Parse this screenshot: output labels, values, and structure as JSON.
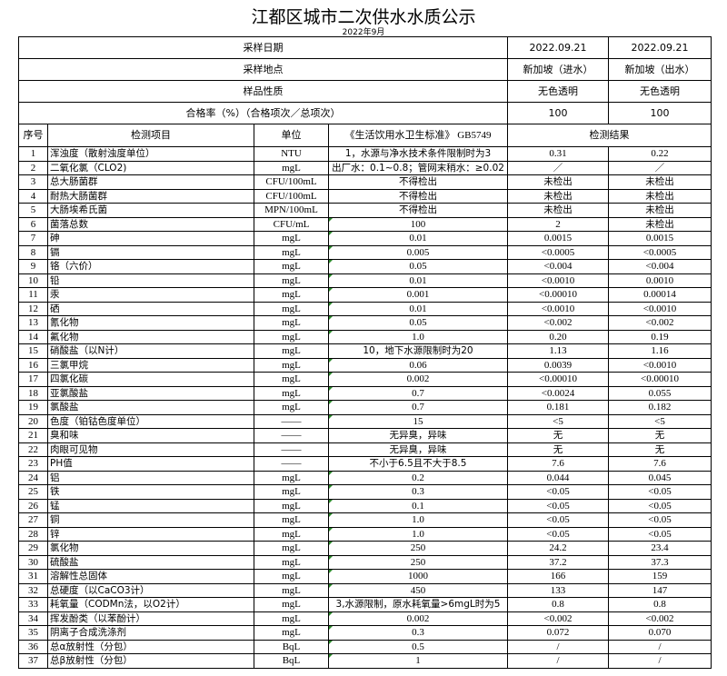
{
  "title": "江都区城市二次供水水质公示",
  "subtitle": "2022年9月",
  "meta": [
    {
      "label": "采样日期",
      "a": "2022.09.21",
      "b": "2022.09.21"
    },
    {
      "label": "采样地点",
      "a": "新加坡（进水）",
      "b": "新加坡（出水）"
    },
    {
      "label": "样品性质",
      "a": "无色透明",
      "b": "无色透明"
    },
    {
      "label": "合格率（%）（合格项次／总项次）",
      "a": "100",
      "b": "100"
    }
  ],
  "header": {
    "no": "序号",
    "item": "检测项目",
    "unit": "单位",
    "standard": "《生活饮用水卫生标准》 GB5749",
    "result": "检测结果"
  },
  "rows": [
    {
      "no": "1",
      "item": "浑浊度（散射浊度单位）",
      "unit": "NTU",
      "std": "1，水源与净水技术条件限制时为3",
      "a": "0.31",
      "b": "0.22"
    },
    {
      "no": "2",
      "item": "二氧化氯（CLO2)",
      "unit": "mgL",
      "std": "出厂水：0.1~0.8；管网末稍水：≥0.02",
      "a": "／",
      "b": "／"
    },
    {
      "no": "3",
      "item": "总大肠菌群",
      "unit": "CFU/100mL",
      "std": "不得检出",
      "a": "未检出",
      "b": "未检出"
    },
    {
      "no": "4",
      "item": "耐热大肠菌群",
      "unit": "CFU/100mL",
      "std": "不得检出",
      "a": "未检出",
      "b": "未检出"
    },
    {
      "no": "5",
      "item": "大肠埃希氏菌",
      "unit": "MPN/100mL",
      "std": "不得检出",
      "a": "未检出",
      "b": "未检出"
    },
    {
      "no": "6",
      "item": "菌落总数",
      "unit": "CFU/mL",
      "std": "100",
      "a": "2",
      "b": "未检出"
    },
    {
      "no": "7",
      "item": "砷",
      "unit": "mgL",
      "std": "0.01",
      "a": "0.0015",
      "b": "0.0015"
    },
    {
      "no": "8",
      "item": "镉",
      "unit": "mgL",
      "std": "0.005",
      "a": "<0.0005",
      "b": "<0.0005"
    },
    {
      "no": "9",
      "item": "铬（六价）",
      "unit": "mgL",
      "std": "0.05",
      "a": "<0.004",
      "b": "<0.004"
    },
    {
      "no": "10",
      "item": "铅",
      "unit": "mgL",
      "std": "0.01",
      "a": "<0.0010",
      "b": "0.0010"
    },
    {
      "no": "11",
      "item": "汞",
      "unit": "mgL",
      "std": "0.001",
      "a": "<0.00010",
      "b": "0.00014"
    },
    {
      "no": "12",
      "item": "硒",
      "unit": "mgL",
      "std": "0.01",
      "a": "<0.0010",
      "b": "<0.0010"
    },
    {
      "no": "13",
      "item": "氰化物",
      "unit": "mgL",
      "std": "0.05",
      "a": "<0.002",
      "b": "<0.002"
    },
    {
      "no": "14",
      "item": "氟化物",
      "unit": "mgL",
      "std": "1.0",
      "a": "0.20",
      "b": "0.19"
    },
    {
      "no": "15",
      "item": "硝酸盐（以N计）",
      "unit": "mgL",
      "std": "10，地下水源限制时为20",
      "a": "1.13",
      "b": "1.16"
    },
    {
      "no": "16",
      "item": "三氯甲烷",
      "unit": "mgL",
      "std": "0.06",
      "a": "0.0039",
      "b": "<0.0010"
    },
    {
      "no": "17",
      "item": "四氯化碳",
      "unit": "mgL",
      "std": "0.002",
      "a": "<0.00010",
      "b": "<0.00010"
    },
    {
      "no": "18",
      "item": "亚氯酸盐",
      "unit": "mgL",
      "std": "0.7",
      "a": "<0.0024",
      "b": "0.055"
    },
    {
      "no": "19",
      "item": "氯酸盐",
      "unit": "mgL",
      "std": "0.7",
      "a": "0.181",
      "b": "0.182"
    },
    {
      "no": "20",
      "item": "色度（铂钴色度单位）",
      "unit": "——",
      "std": "15",
      "a": "<5",
      "b": "<5"
    },
    {
      "no": "21",
      "item": "臭和味",
      "unit": "——",
      "std": "无异臭，异味",
      "a": "无",
      "b": "无"
    },
    {
      "no": "22",
      "item": "肉眼可见物",
      "unit": "——",
      "std": "无异臭，异味",
      "a": "无",
      "b": "无"
    },
    {
      "no": "23",
      "item": "PH值",
      "unit": "——",
      "std": "不小于6.5且不大于8.5",
      "a": "7.6",
      "b": "7.6"
    },
    {
      "no": "24",
      "item": "铝",
      "unit": "mgL",
      "std": "0.2",
      "a": "0.044",
      "b": "0.045"
    },
    {
      "no": "25",
      "item": "铁",
      "unit": "mgL",
      "std": "0.3",
      "a": "<0.05",
      "b": "<0.05"
    },
    {
      "no": "26",
      "item": "锰",
      "unit": "mgL",
      "std": "0.1",
      "a": "<0.05",
      "b": "<0.05"
    },
    {
      "no": "27",
      "item": "铜",
      "unit": "mgL",
      "std": "1.0",
      "a": "<0.05",
      "b": "<0.05"
    },
    {
      "no": "28",
      "item": "锌",
      "unit": "mgL",
      "std": "1.0",
      "a": "<0.05",
      "b": "<0.05"
    },
    {
      "no": "29",
      "item": "氯化物",
      "unit": "mgL",
      "std": "250",
      "a": "24.2",
      "b": "23.4"
    },
    {
      "no": "30",
      "item": "硫酸盐",
      "unit": "mgL",
      "std": "250",
      "a": "37.2",
      "b": "37.3"
    },
    {
      "no": "31",
      "item": "溶解性总固体",
      "unit": "mgL",
      "std": "1000",
      "a": "166",
      "b": "159"
    },
    {
      "no": "32",
      "item": "总硬度（以CaCO3计）",
      "unit": "mgL",
      "std": "450",
      "a": "133",
      "b": "147"
    },
    {
      "no": "33",
      "item": "耗氧量（CODMn法，以O2计）",
      "unit": "mgL",
      "std": "3,水源限制，原水耗氧量>6mgL时为5",
      "a": "0.8",
      "b": "0.8"
    },
    {
      "no": "34",
      "item": "挥发酚类（以苯酚计）",
      "unit": "mgL",
      "std": "0.002",
      "a": "<0.002",
      "b": "<0.002"
    },
    {
      "no": "35",
      "item": "阴离子合成洗涤剂",
      "unit": "mgL",
      "std": "0.3",
      "a": "0.072",
      "b": "0.070"
    },
    {
      "no": "36",
      "item": "总α放射性（分包）",
      "unit": "BqL",
      "std": "0.5",
      "a": "/",
      "b": "/"
    },
    {
      "no": "37",
      "item": "总β放射性（分包）",
      "unit": "BqL",
      "std": "1",
      "a": "/",
      "b": "/"
    }
  ]
}
